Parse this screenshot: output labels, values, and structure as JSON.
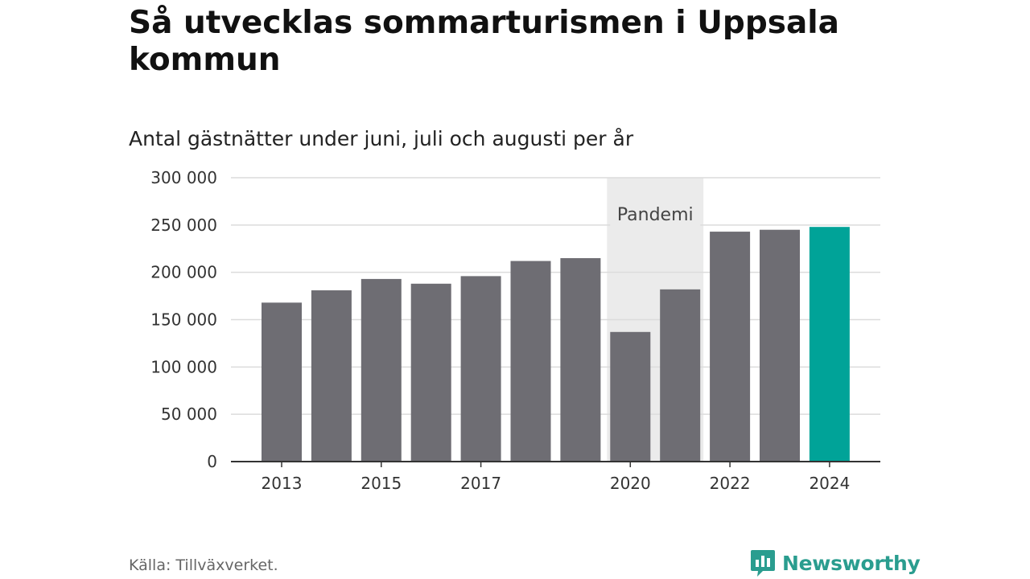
{
  "header": {
    "title": "Så utvecklas sommarturismen i Uppsala kommun",
    "subtitle": "Antal gästnätter under juni, juli och augusti per år"
  },
  "footer": {
    "source": "Källa: Tillväxverket.",
    "brand": "Newsworthy"
  },
  "colors": {
    "bar": "#6e6d73",
    "highlight": "#00a398",
    "band": "#ebebeb",
    "brand": "#2a9d8f"
  },
  "chart_data": {
    "type": "bar",
    "categories": [
      "2013",
      "2014",
      "2015",
      "2016",
      "2017",
      "2018",
      "2019",
      "2020",
      "2021",
      "2022",
      "2023",
      "2024"
    ],
    "values": [
      168000,
      181000,
      193000,
      188000,
      196000,
      212000,
      215000,
      137000,
      182000,
      243000,
      245000,
      248000
    ],
    "highlight": "2024",
    "ylim": [
      0,
      300000
    ],
    "yticks": [
      0,
      50000,
      100000,
      150000,
      200000,
      250000,
      300000
    ],
    "ytick_labels": [
      "0",
      "50 000",
      "100 000",
      "150 000",
      "200 000",
      "250 000",
      "300 000"
    ],
    "xtick_labels": [
      "2013",
      "2015",
      "2017",
      "2020",
      "2022",
      "2024"
    ],
    "annotations": [
      {
        "label": "Pandemi",
        "from": "2020",
        "to": "2021"
      }
    ],
    "grid": true,
    "xlabel": "",
    "ylabel": ""
  }
}
